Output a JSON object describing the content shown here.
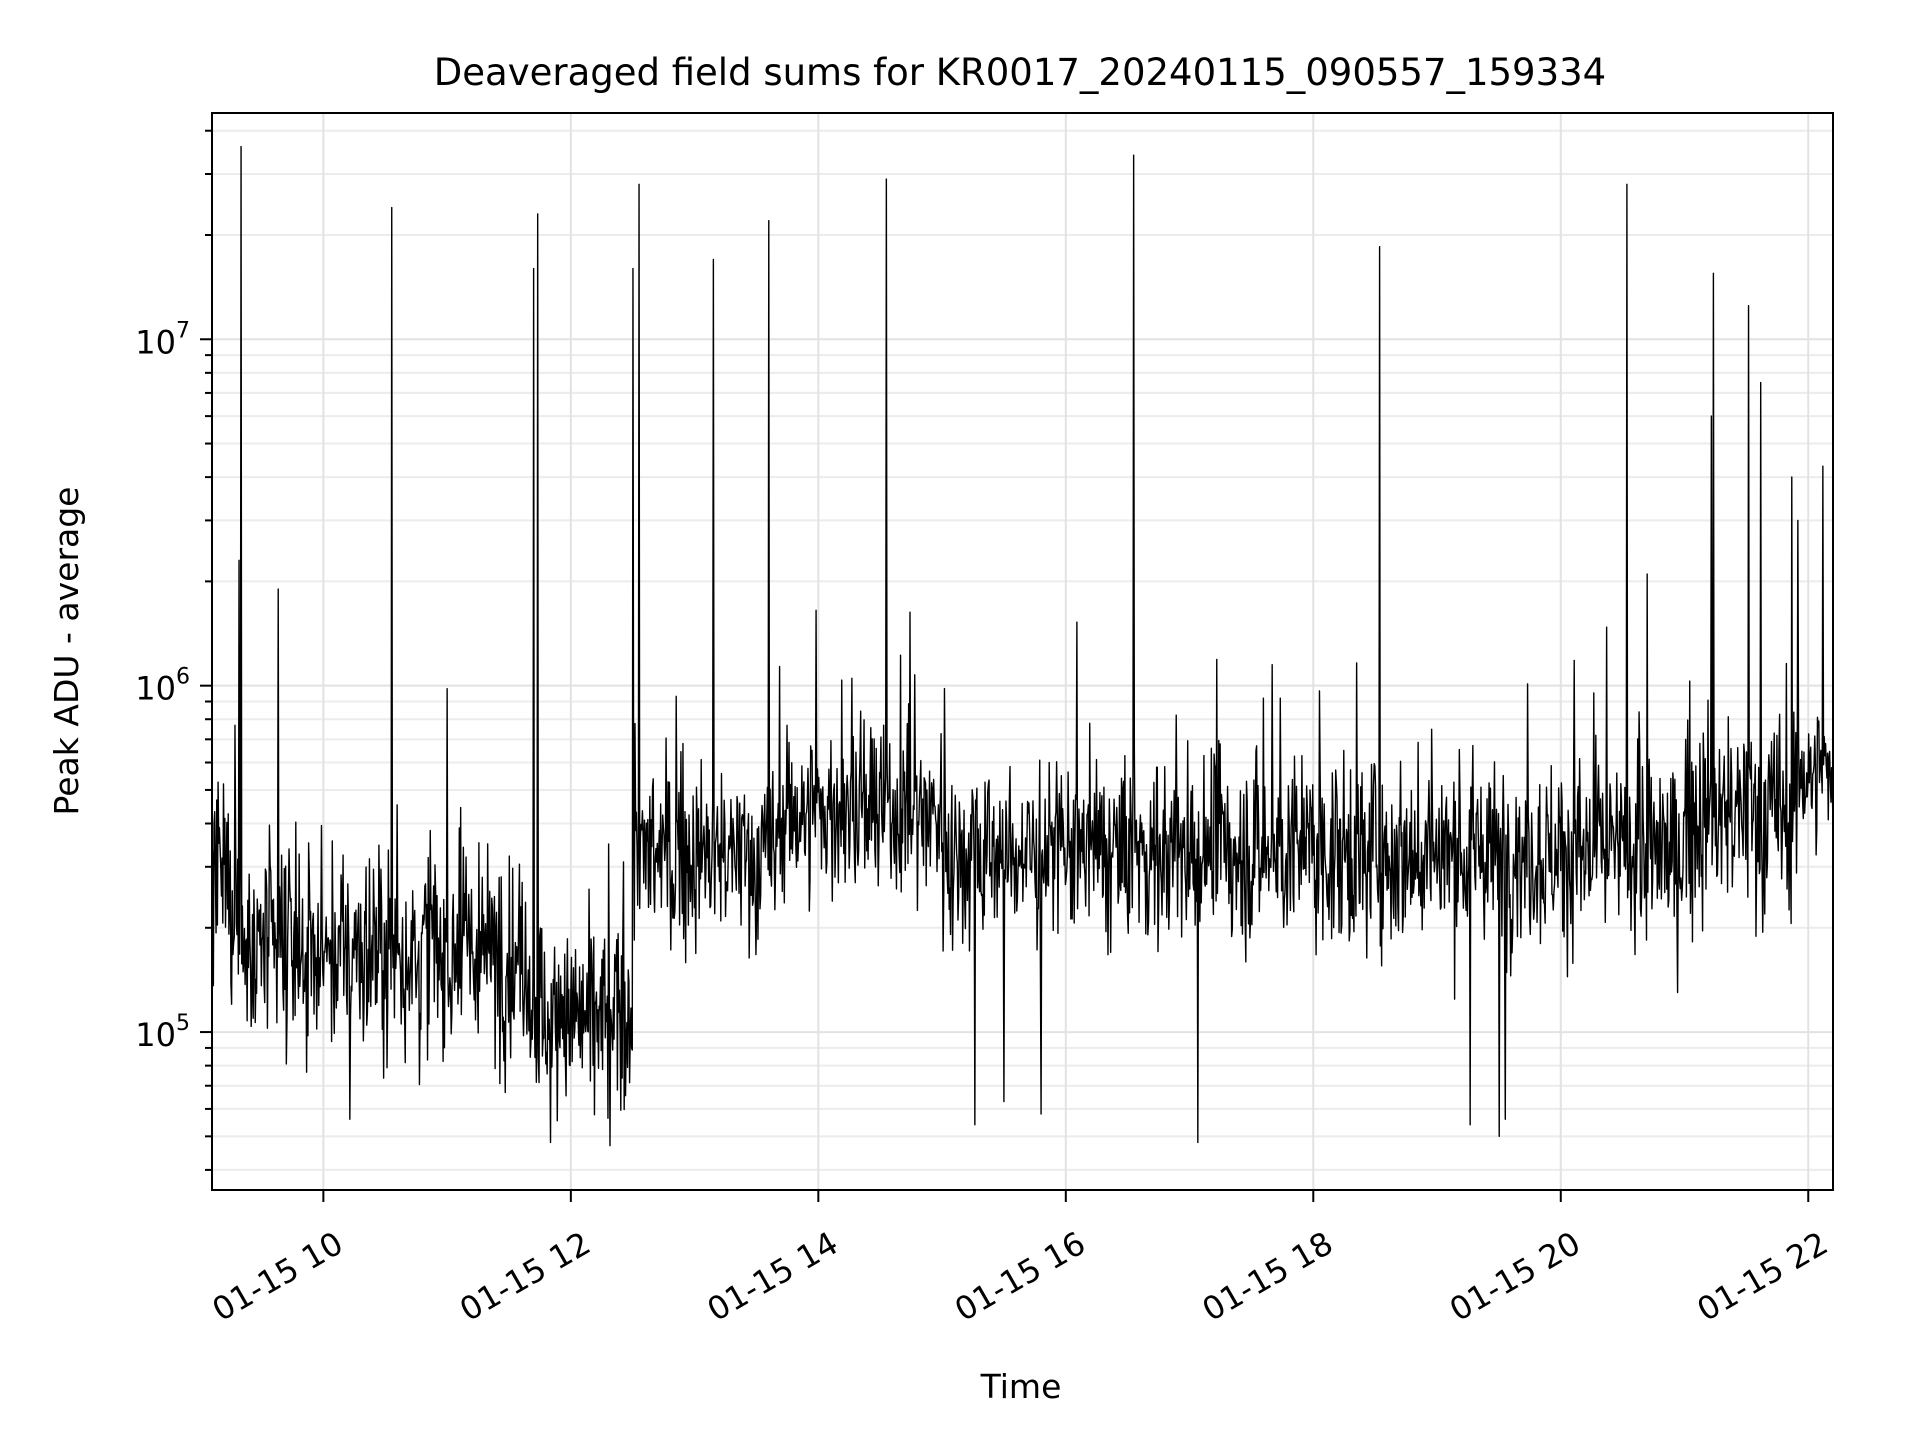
{
  "chart_data": {
    "type": "line",
    "title": "Deaveraged field sums for KR0017_20240115_090557_159334",
    "xlabel": "Time",
    "ylabel": "Peak ADU - average",
    "yscale": "log",
    "xlim": [
      "2024-01-15 09:06",
      "2024-01-15 22:12"
    ],
    "ylim": [
      35000,
      45000000
    ],
    "grid": true,
    "line_color": "#000000",
    "x_ticks": [
      {
        "x": "2024-01-15 10:00",
        "label": "01-15 10"
      },
      {
        "x": "2024-01-15 12:00",
        "label": "01-15 12"
      },
      {
        "x": "2024-01-15 14:00",
        "label": "01-15 14"
      },
      {
        "x": "2024-01-15 16:00",
        "label": "01-15 16"
      },
      {
        "x": "2024-01-15 18:00",
        "label": "01-15 18"
      },
      {
        "x": "2024-01-15 20:00",
        "label": "01-15 20"
      },
      {
        "x": "2024-01-15 22:00",
        "label": "01-15 22"
      }
    ],
    "y_ticks": [
      {
        "y": 100000,
        "base": "10",
        "exp": "5"
      },
      {
        "y": 1000000,
        "base": "10",
        "exp": "6"
      },
      {
        "y": 10000000,
        "base": "10",
        "exp": "7"
      }
    ],
    "baseline_segments": [
      {
        "x_start": "2024-01-15 09:06",
        "x_end": "2024-01-15 09:20",
        "median": 260000,
        "spread": 0.55
      },
      {
        "x_start": "2024-01-15 09:20",
        "x_end": "2024-01-15 11:40",
        "median": 170000,
        "spread": 0.5
      },
      {
        "x_start": "2024-01-15 11:40",
        "x_end": "2024-01-15 12:30",
        "median": 110000,
        "spread": 0.45
      },
      {
        "x_start": "2024-01-15 12:30",
        "x_end": "2024-01-15 13:40",
        "median": 320000,
        "spread": 0.42
      },
      {
        "x_start": "2024-01-15 13:40",
        "x_end": "2024-01-15 15:00",
        "median": 430000,
        "spread": 0.42
      },
      {
        "x_start": "2024-01-15 15:00",
        "x_end": "2024-01-15 21:00",
        "median": 330000,
        "spread": 0.45
      },
      {
        "x_start": "2024-01-15 21:00",
        "x_end": "2024-01-15 21:55",
        "median": 420000,
        "spread": 0.5
      },
      {
        "x_start": "2024-01-15 21:55",
        "x_end": "2024-01-15 22:12",
        "median": 560000,
        "spread": 0.35
      }
    ],
    "spikes": [
      {
        "x": "2024-01-15 09:19",
        "y": 2300000
      },
      {
        "x": "2024-01-15 09:20",
        "y": 36000000
      },
      {
        "x": "2024-01-15 09:38",
        "y": 1900000
      },
      {
        "x": "2024-01-15 10:33",
        "y": 24000000
      },
      {
        "x": "2024-01-15 11:00",
        "y": 980000
      },
      {
        "x": "2024-01-15 11:42",
        "y": 16000000
      },
      {
        "x": "2024-01-15 11:44",
        "y": 23000000
      },
      {
        "x": "2024-01-15 12:30",
        "y": 16000000
      },
      {
        "x": "2024-01-15 12:33",
        "y": 28000000
      },
      {
        "x": "2024-01-15 13:09",
        "y": 17000000
      },
      {
        "x": "2024-01-15 13:36",
        "y": 22000000
      },
      {
        "x": "2024-01-15 13:59",
        "y": 1650000
      },
      {
        "x": "2024-01-15 14:33",
        "y": 29000000
      },
      {
        "x": "2024-01-15 16:33",
        "y": 34000000
      },
      {
        "x": "2024-01-15 17:40",
        "y": 1150000
      },
      {
        "x": "2024-01-15 18:32",
        "y": 18500000
      },
      {
        "x": "2024-01-15 20:32",
        "y": 28000000
      },
      {
        "x": "2024-01-15 20:42",
        "y": 2100000
      },
      {
        "x": "2024-01-15 21:13",
        "y": 6000000
      },
      {
        "x": "2024-01-15 21:14",
        "y": 15500000
      },
      {
        "x": "2024-01-15 21:31",
        "y": 12500000
      },
      {
        "x": "2024-01-15 21:37",
        "y": 7500000
      },
      {
        "x": "2024-01-15 21:52",
        "y": 4000000
      },
      {
        "x": "2024-01-15 21:55",
        "y": 3000000
      },
      {
        "x": "2024-01-15 22:07",
        "y": 4300000
      }
    ],
    "dips": [
      {
        "x": "2024-01-15 10:13",
        "y": 56000
      },
      {
        "x": "2024-01-15 11:50",
        "y": 48000
      },
      {
        "x": "2024-01-15 12:19",
        "y": 47000
      },
      {
        "x": "2024-01-15 15:16",
        "y": 54000
      },
      {
        "x": "2024-01-15 15:30",
        "y": 63000
      },
      {
        "x": "2024-01-15 15:48",
        "y": 58000
      },
      {
        "x": "2024-01-15 17:04",
        "y": 48000
      },
      {
        "x": "2024-01-15 19:16",
        "y": 54000
      },
      {
        "x": "2024-01-15 19:30",
        "y": 50000
      },
      {
        "x": "2024-01-15 19:33",
        "y": 56000
      }
    ]
  }
}
